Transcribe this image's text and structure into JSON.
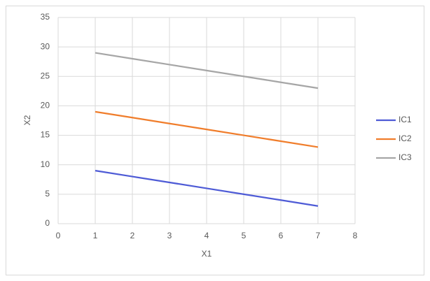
{
  "chart_data": {
    "type": "line",
    "x": [
      1,
      2,
      3,
      4,
      5,
      6,
      7
    ],
    "series": [
      {
        "name": "IC1",
        "color": "#4e5bd6",
        "values": [
          9,
          8,
          7,
          6,
          5,
          4,
          3
        ]
      },
      {
        "name": "IC2",
        "color": "#f07d2b",
        "values": [
          19,
          18,
          17,
          16,
          15,
          14,
          13
        ]
      },
      {
        "name": "IC3",
        "color": "#a6a6a6",
        "values": [
          29,
          28,
          27,
          26,
          25,
          24,
          23
        ]
      }
    ],
    "xlabel": "X1",
    "ylabel": "X2",
    "xlim": [
      0,
      8
    ],
    "xticks": [
      0,
      1,
      2,
      3,
      4,
      5,
      6,
      7,
      8
    ],
    "ylim": [
      0,
      35
    ],
    "yticks": [
      0,
      5,
      10,
      15,
      20,
      25,
      30,
      35
    ],
    "grid": true,
    "legend": "right"
  }
}
